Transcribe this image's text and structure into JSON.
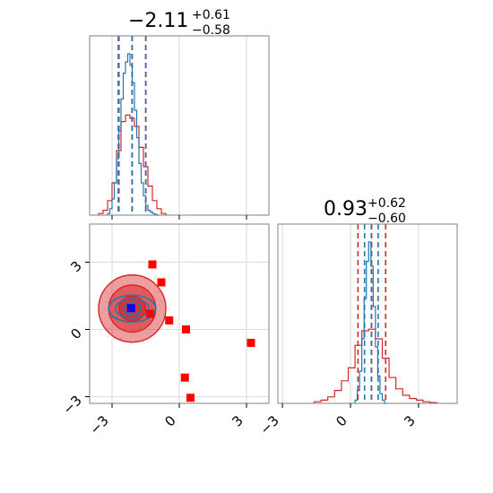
{
  "chart_data": [
    {
      "type": "histogram",
      "panel": "top-left",
      "title_main": "−2.11",
      "title_sup": "+0.61",
      "title_sub": "−0.58",
      "xlim": [
        -4,
        4
      ],
      "grid": true,
      "show_tick_labels": false,
      "colors": {
        "blue": "#1f77b4",
        "red": "#d62728"
      },
      "series": [
        {
          "color": "blue",
          "edges": [
            -3.2,
            -3.1,
            -3.0,
            -2.9,
            -2.8,
            -2.7,
            -2.6,
            -2.5,
            -2.4,
            -2.3,
            -2.2,
            -2.1,
            -2.0,
            -1.9,
            -1.8,
            -1.7,
            -1.6,
            -1.5,
            -1.4,
            -1.3,
            -1.2,
            -1.1,
            -1.0,
            -0.9
          ],
          "counts": [
            0.01,
            0.04,
            0.1,
            0.2,
            0.35,
            0.52,
            0.72,
            0.88,
            0.95,
            1.0,
            0.93,
            0.82,
            0.65,
            0.48,
            0.32,
            0.2,
            0.12,
            0.06,
            0.03,
            0.02,
            0.01,
            0.005,
            0.0
          ],
          "quantiles": [
            -2.69,
            -2.11,
            -1.5
          ]
        },
        {
          "color": "red",
          "edges": [
            -3.6,
            -3.4,
            -3.2,
            -3.0,
            -2.8,
            -2.6,
            -2.4,
            -2.2,
            -2.0,
            -1.8,
            -1.6,
            -1.4,
            -1.2,
            -1.0,
            -0.8,
            -0.6
          ],
          "counts": [
            0.01,
            0.03,
            0.09,
            0.2,
            0.4,
            0.58,
            0.62,
            0.6,
            0.55,
            0.42,
            0.3,
            0.18,
            0.09,
            0.04,
            0.01
          ],
          "quantiles": [
            -2.72,
            -2.1,
            -1.49
          ]
        }
      ]
    },
    {
      "type": "histogram",
      "panel": "bottom-right",
      "title_main": "0.93",
      "title_sup": "+0.62",
      "title_sub": "−0.60",
      "xlim": [
        -3.2,
        4.7
      ],
      "x_ticks": [
        -3,
        0,
        3
      ],
      "x_tick_labels": [
        "−3",
        "0",
        "3"
      ],
      "grid": true,
      "colors": {
        "blue": "#1f77b4",
        "red": "#d62728"
      },
      "series": [
        {
          "color": "blue",
          "edges": [
            0.2,
            0.3,
            0.4,
            0.5,
            0.6,
            0.7,
            0.8,
            0.9,
            1.0,
            1.1,
            1.2,
            1.3,
            1.4,
            1.5,
            1.6
          ],
          "counts": [
            0.02,
            0.08,
            0.2,
            0.4,
            0.65,
            0.88,
            1.0,
            0.85,
            0.6,
            0.35,
            0.17,
            0.06,
            0.02,
            0.0
          ],
          "quantiles": [
            0.62,
            0.92,
            1.22
          ]
        },
        {
          "color": "red",
          "edges": [
            -1.6,
            -1.3,
            -1.0,
            -0.7,
            -0.4,
            -0.1,
            0.2,
            0.5,
            0.8,
            1.1,
            1.4,
            1.7,
            2.0,
            2.3,
            2.6,
            2.9,
            3.2,
            3.5,
            3.8
          ],
          "counts": [
            0.01,
            0.02,
            0.04,
            0.08,
            0.14,
            0.22,
            0.36,
            0.45,
            0.46,
            0.4,
            0.28,
            0.16,
            0.09,
            0.05,
            0.03,
            0.02,
            0.01,
            0.005
          ],
          "quantiles": [
            0.33,
            0.93,
            1.55
          ]
        }
      ]
    },
    {
      "type": "scatter",
      "panel": "bottom-left",
      "xlim": [
        -4,
        4
      ],
      "ylim": [
        -3.3,
        4.7
      ],
      "x_ticks": [
        -3,
        0,
        3
      ],
      "x_tick_labels": [
        "−3",
        "0",
        "3"
      ],
      "y_ticks": [
        -3,
        0,
        3
      ],
      "y_tick_labels": [
        "−3",
        "0",
        "3"
      ],
      "grid": true,
      "contours": {
        "center": [
          -2.1,
          0.93
        ],
        "red_fill_radii": [
          [
            1.5,
            1.5
          ],
          [
            1.05,
            1.05
          ],
          [
            0.6,
            0.55
          ]
        ],
        "blue_radii": [
          [
            1.05,
            0.6
          ],
          [
            0.75,
            0.42
          ],
          [
            0.4,
            0.25
          ]
        ]
      },
      "red_squares": [
        {
          "x": -1.2,
          "y": 2.9
        },
        {
          "x": -0.8,
          "y": 2.1
        },
        {
          "x": -1.3,
          "y": 0.7
        },
        {
          "x": -0.45,
          "y": 0.4
        },
        {
          "x": 0.3,
          "y": 0.0
        },
        {
          "x": 3.2,
          "y": -0.6
        },
        {
          "x": 0.25,
          "y": -2.15
        },
        {
          "x": 0.5,
          "y": -3.05
        }
      ],
      "blue_square": {
        "x": -2.15,
        "y": 0.95
      },
      "colors": {
        "blue": "#1f77b4",
        "red": "#d62728",
        "marker_red": "#ff0000",
        "marker_blue": "#0000ff"
      }
    }
  ]
}
